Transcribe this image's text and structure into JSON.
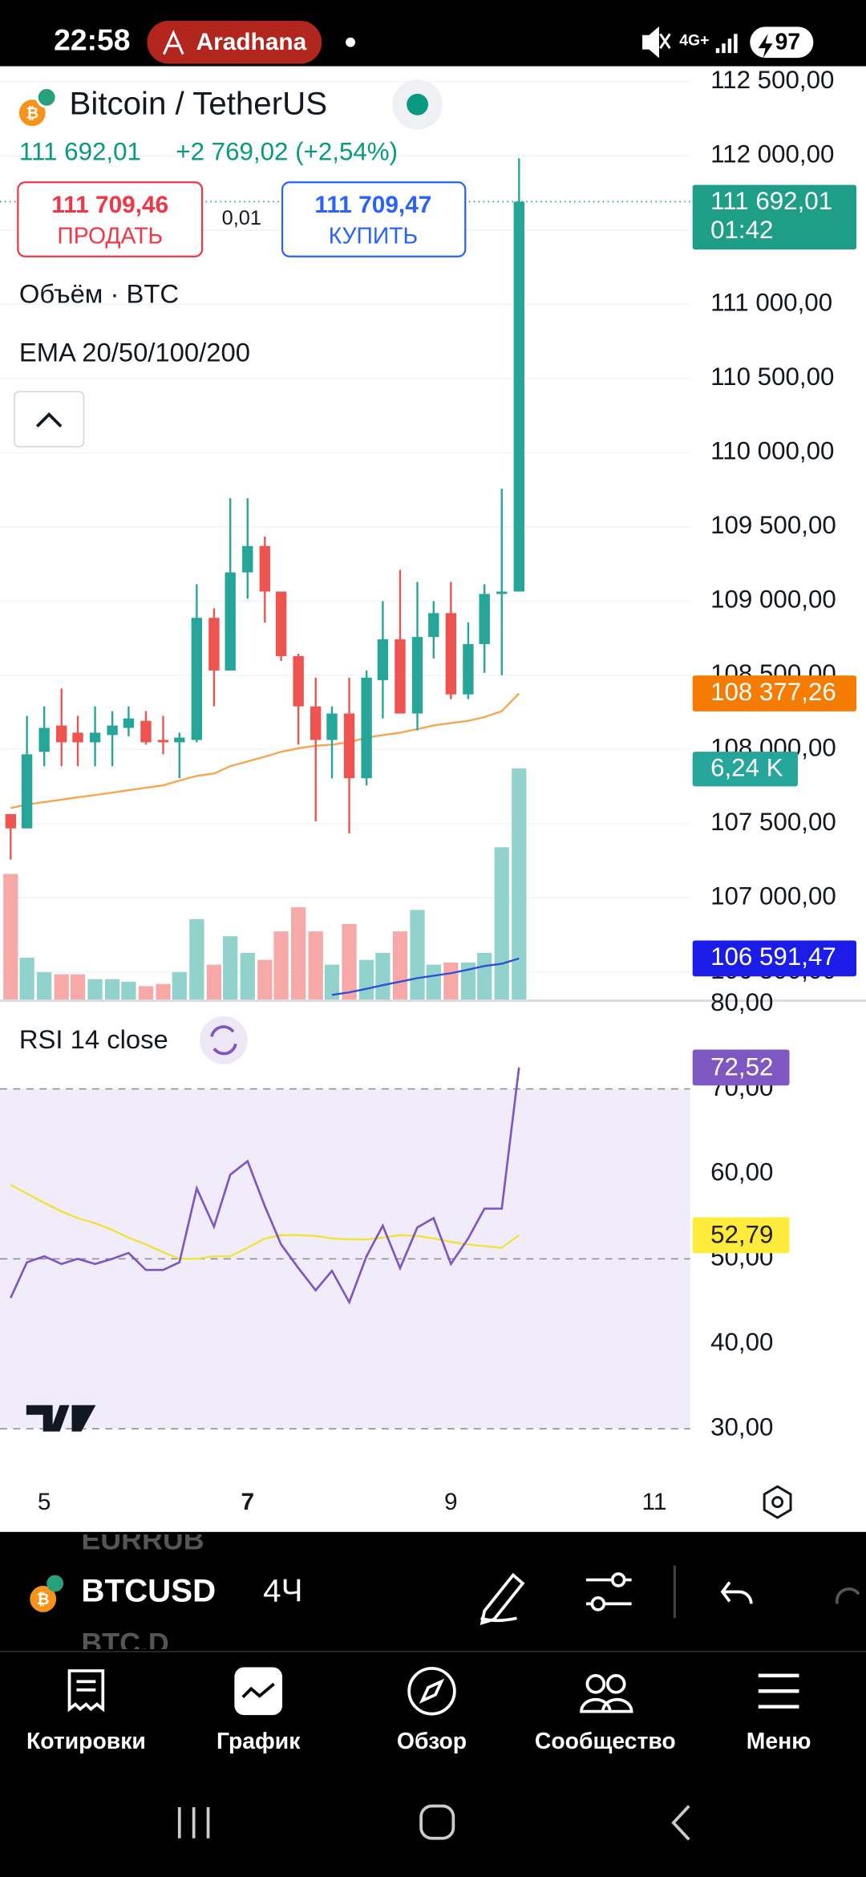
{
  "status_bar": {
    "time": "22:58",
    "user": "Aradhana",
    "network": "4G+",
    "battery": "97"
  },
  "header": {
    "price": "111 692,01",
    "change": "+2 769,02 (+2,54%)",
    "sell_price": "111 709,46",
    "sell_label": "ПРОДАТЬ",
    "spread": "0,01",
    "buy_price": "111 709,47",
    "buy_label": "КУПИТЬ",
    "volume_legend": "Объём · BTC",
    "ema_legend": "EMA 20/50/100/200",
    "rsi_legend": "RSI 14 close"
  },
  "chart_data": {
    "type": "candlestick",
    "title": "Bitcoin / TetherUS",
    "x": [
      4.67,
      4.83,
      5.0,
      5.17,
      5.33,
      5.5,
      5.67,
      5.83,
      6.0,
      6.17,
      6.33,
      6.5,
      6.67,
      6.83,
      7.0,
      7.17,
      7.33,
      7.5,
      7.67,
      7.83,
      8.0,
      8.17,
      8.33,
      8.5,
      8.67,
      8.83,
      9.0,
      9.17,
      9.33,
      9.5,
      9.67
    ],
    "open": [
      107564,
      107468,
      107984,
      108161,
      108113,
      108048,
      108097,
      108145,
      108193,
      108064,
      108048,
      108064,
      108887,
      108532,
      109193,
      109371,
      109064,
      108629,
      108290,
      108064,
      108242,
      107806,
      108467,
      108742,
      108242,
      108758,
      108919,
      108371,
      108710,
      109048,
      109064
    ],
    "high": [
      107564,
      108226,
      108290,
      108411,
      108226,
      108290,
      108258,
      108290,
      108258,
      108226,
      108113,
      109113,
      108951,
      109693,
      109693,
      109435,
      109064,
      108645,
      108484,
      108290,
      108484,
      108532,
      109000,
      109210,
      109129,
      109000,
      109129,
      108855,
      109113,
      109758,
      111984
    ],
    "low": [
      107258,
      107468,
      107887,
      107887,
      107887,
      107887,
      107887,
      108088,
      108032,
      107967,
      107806,
      108048,
      108290,
      108532,
      109016,
      108855,
      108597,
      108032,
      107516,
      107806,
      107435,
      107758,
      108209,
      108242,
      108129,
      108613,
      108339,
      108339,
      108516,
      108500,
      109064
    ],
    "close": [
      107468,
      107967,
      108145,
      108048,
      108048,
      108113,
      108161,
      108209,
      108048,
      108048,
      108080,
      108887,
      108532,
      109193,
      109371,
      109064,
      108629,
      108290,
      108064,
      108242,
      107806,
      108484,
      108742,
      108242,
      108758,
      108919,
      108371,
      108710,
      109048,
      109064,
      111692.01
    ],
    "up_color": "#26a69a",
    "down_color": "#ef5350",
    "xlim": [
      4.565,
      11.353
    ],
    "xticks": [
      5,
      7,
      9,
      11
    ],
    "ylim": [
      106314.5,
      112604.8
    ],
    "yticks": [
      {
        "value": 112500,
        "label": "112 500,00"
      },
      {
        "value": 112000,
        "label": "112 000,00"
      },
      {
        "value": 111500,
        "label": "111 500,00"
      },
      {
        "value": 111000,
        "label": "111 000,00"
      },
      {
        "value": 110500,
        "label": "110 500,00"
      },
      {
        "value": 110000,
        "label": "110 000,00"
      },
      {
        "value": 109500,
        "label": "109 500,00"
      },
      {
        "value": 109000,
        "label": "109 000,00"
      },
      {
        "value": 108500,
        "label": "108 500,00"
      },
      {
        "value": 108000,
        "label": "108 000,00"
      },
      {
        "value": 107500,
        "label": "107 500,00"
      },
      {
        "value": 107000,
        "label": "107 000,00"
      },
      {
        "value": 106500,
        "label": "106 500,00"
      }
    ],
    "grid": true,
    "volume": {
      "values": [
        3.39,
        1.13,
        0.74,
        0.68,
        0.68,
        0.55,
        0.55,
        0.48,
        0.36,
        0.42,
        0.74,
        2.17,
        0.94,
        1.71,
        1.26,
        1.07,
        1.84,
        2.49,
        1.84,
        0.94,
        2.04,
        1.07,
        1.26,
        1.84,
        2.42,
        0.94,
        1.0,
        1.0,
        1.26,
        4.11,
        6.24
      ],
      "up_color": "#92d2cc",
      "down_color": "#f7a9a7",
      "ylim": [
        0,
        25.2
      ]
    },
    "ema": [
      {
        "color": "#f7a64f",
        "values": [
          107605,
          107629,
          107645,
          107661,
          107677,
          107693,
          107709,
          107726,
          107742,
          107758,
          107790,
          107822,
          107838,
          107887,
          107919,
          107951,
          107984,
          108008,
          108024,
          108032,
          108048,
          108080,
          108097,
          108113,
          108137,
          108161,
          108177,
          108193,
          108218,
          108258,
          108377.26
        ]
      },
      {
        "color": "#2f4fd8",
        "values": [
          null,
          null,
          null,
          null,
          null,
          null,
          null,
          null,
          null,
          null,
          null,
          null,
          null,
          null,
          null,
          null,
          null,
          null,
          null,
          106346,
          106363,
          106387,
          106411,
          106435,
          106459,
          106475,
          106492,
          106516,
          106540,
          106556,
          106591.47
        ]
      }
    ],
    "price_tags": [
      {
        "value": 111692.01,
        "label": "111 692,01",
        "timer": "01:42",
        "color": "#1e9e86"
      },
      {
        "value": 108377.26,
        "label": "108 377,26",
        "color": "#f57c00"
      },
      {
        "value": 106591.47,
        "label": "106 591,47",
        "color": "#1c1ce8"
      }
    ],
    "volume_tag": {
      "value": 6.24,
      "label": "6,24 K",
      "color": "#26a69a"
    },
    "rsi": {
      "values": [
        45.4,
        49.6,
        50.3,
        49.4,
        50.0,
        49.4,
        50.0,
        50.7,
        48.7,
        48.7,
        49.6,
        58.3,
        53.8,
        59.9,
        61.5,
        56.2,
        51.7,
        48.9,
        46.3,
        48.6,
        44.9,
        50.3,
        53.9,
        48.9,
        53.7,
        54.8,
        49.4,
        52.4,
        55.9,
        55.9,
        72.52
      ],
      "color": "#7e57c2",
      "ma_values": [
        58.7,
        57.7,
        56.6,
        55.6,
        54.8,
        54.2,
        53.4,
        52.5,
        51.7,
        50.8,
        50.0,
        50.0,
        50.3,
        50.3,
        51.3,
        52.4,
        52.8,
        52.8,
        52.7,
        52.4,
        52.3,
        52.3,
        52.5,
        52.8,
        52.7,
        52.4,
        52.0,
        51.7,
        51.5,
        51.3,
        52.79
      ],
      "ma_color": "#f2e33a",
      "ylim": [
        25.6,
        80.1
      ],
      "yticks": [
        {
          "value": 80,
          "label": "80,00"
        },
        {
          "value": 70,
          "label": "70,00"
        },
        {
          "value": 60,
          "label": "60,00"
        },
        {
          "value": 50,
          "label": "50,00"
        },
        {
          "value": 40,
          "label": "40,00"
        },
        {
          "value": 30,
          "label": "30,00"
        }
      ],
      "band": [
        30,
        70
      ],
      "levels": [
        70,
        50,
        30
      ],
      "tags": [
        {
          "value": 72.52,
          "label": "72,52",
          "color": "#7e57c2",
          "text_color": "#ffffff"
        },
        {
          "value": 52.79,
          "label": "52,79",
          "color": "#ffeb3b",
          "text_color": "#222222"
        }
      ]
    }
  },
  "toolbar": {
    "symbol": "BTCUSD",
    "interval": "4Ч",
    "prev_symbol": "EURRUB",
    "next_symbol": "BTC.D"
  },
  "nav": [
    "Котировки",
    "График",
    "Обзор",
    "Сообщество",
    "Меню"
  ]
}
